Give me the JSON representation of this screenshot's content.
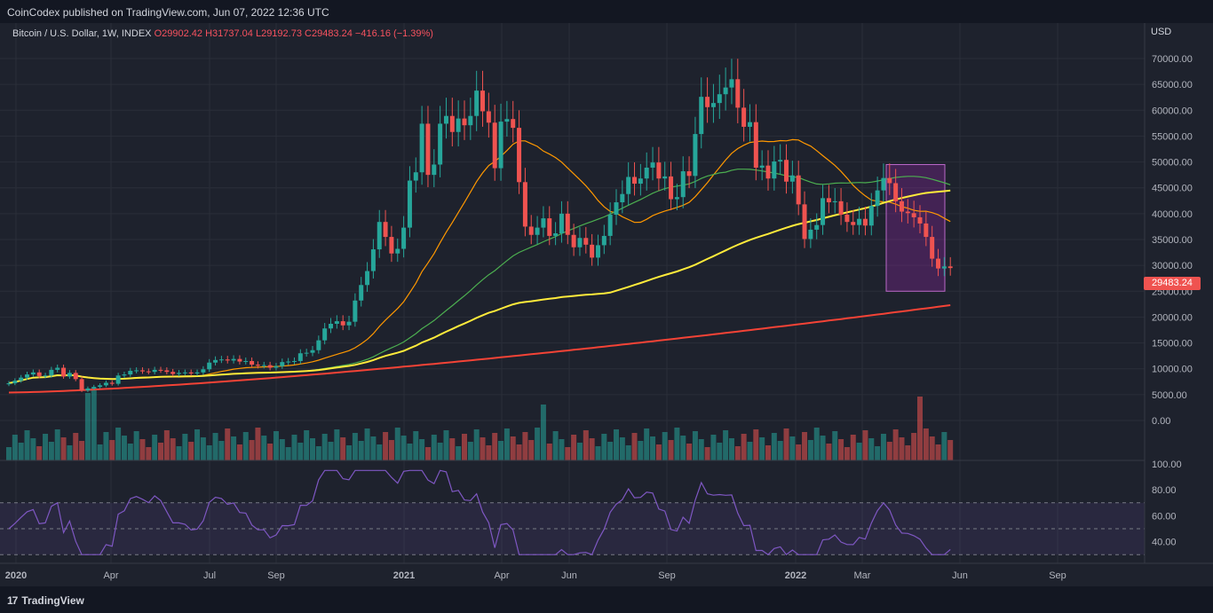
{
  "header": {
    "publisher": "CoinCodex published on TradingView.com, Jun 07, 2022 12:36 UTC"
  },
  "legend": {
    "symbol": "Bitcoin / U.S. Dollar, 1W, INDEX",
    "open": "O29902.42",
    "high": "H31737.04",
    "low": "L29192.73",
    "close": "C29483.24",
    "change": "−416.16 (−1.39%)"
  },
  "price_axis": {
    "currency": "USD",
    "last_price": "29483.24"
  },
  "footer": {
    "brand": "TradingView",
    "logo_mark": "17"
  },
  "colors": {
    "up": "#26a69a",
    "down": "#ef5350",
    "ma20": "#ff9800",
    "ma50": "#4caf50",
    "ma100": "#ffeb3b",
    "ma200": "#f44336",
    "rsi": "#7e57c2",
    "highlight": "#9c27b0"
  },
  "chart_data": {
    "type": "candlestick",
    "price_ticks": [
      "70000.00",
      "65000.00",
      "60000.00",
      "55000.00",
      "50000.00",
      "45000.00",
      "40000.00",
      "35000.00",
      "30000.00",
      "25000.00",
      "20000.00",
      "15000.00",
      "10000.00",
      "5000.00",
      "0.00"
    ],
    "rsi_ticks": [
      "100.00",
      "80.00",
      "60.00",
      "40.00"
    ],
    "time_ticks": [
      "2020",
      "Apr",
      "Jul",
      "Sep",
      "2021",
      "Apr",
      "Jun",
      "Sep",
      "2022",
      "Mar",
      "Jun",
      "Sep"
    ],
    "closes": [
      7200,
      7700,
      8300,
      8900,
      9300,
      8600,
      8700,
      9800,
      10200,
      8500,
      9200,
      8000,
      5800,
      6200,
      6500,
      6800,
      7300,
      7100,
      8700,
      8900,
      9600,
      9700,
      9500,
      9400,
      9800,
      9700,
      9400,
      9000,
      9200,
      9300,
      9100,
      9300,
      9900,
      11200,
      11700,
      11800,
      11600,
      11900,
      11400,
      11500,
      10800,
      10600,
      10700,
      10200,
      10500,
      11300,
      11400,
      11500,
      13000,
      13100,
      13600,
      15500,
      17800,
      18700,
      19200,
      18400,
      19100,
      23200,
      26200,
      28900,
      33100,
      38400,
      35500,
      32300,
      33200,
      37300,
      46400,
      48000,
      57400,
      47500,
      49500,
      57400,
      58900,
      55800,
      58400,
      57100,
      58900,
      63800,
      59800,
      57600,
      48800,
      57800,
      58300,
      56600,
      46100,
      37500,
      35900,
      37300,
      39100,
      35700,
      36200,
      40000,
      35900,
      33500,
      35300,
      34000,
      31500,
      33900,
      35700,
      39800,
      42200,
      43800,
      47100,
      45800,
      46800,
      48900,
      49900,
      46800,
      47200,
      42800,
      43200,
      48200,
      47300,
      55400,
      62600,
      60600,
      61400,
      63100,
      64400,
      66000,
      60500,
      56800,
      57700,
      48900,
      49300,
      46800,
      50100,
      50400,
      46200,
      47400,
      41800,
      35100,
      36900,
      37800,
      43000,
      42200,
      42400,
      39800,
      38400,
      37800,
      39000,
      37700,
      41500,
      44500,
      46900,
      45900,
      42400,
      40400,
      40100,
      39300,
      38100,
      35500,
      31300,
      29400,
      29800,
      29483
    ],
    "ma200_range": [
      5400,
      22300
    ],
    "rsi_last": 34,
    "highlight_box": {
      "price_top": 49500,
      "price_bottom": 25000
    }
  }
}
